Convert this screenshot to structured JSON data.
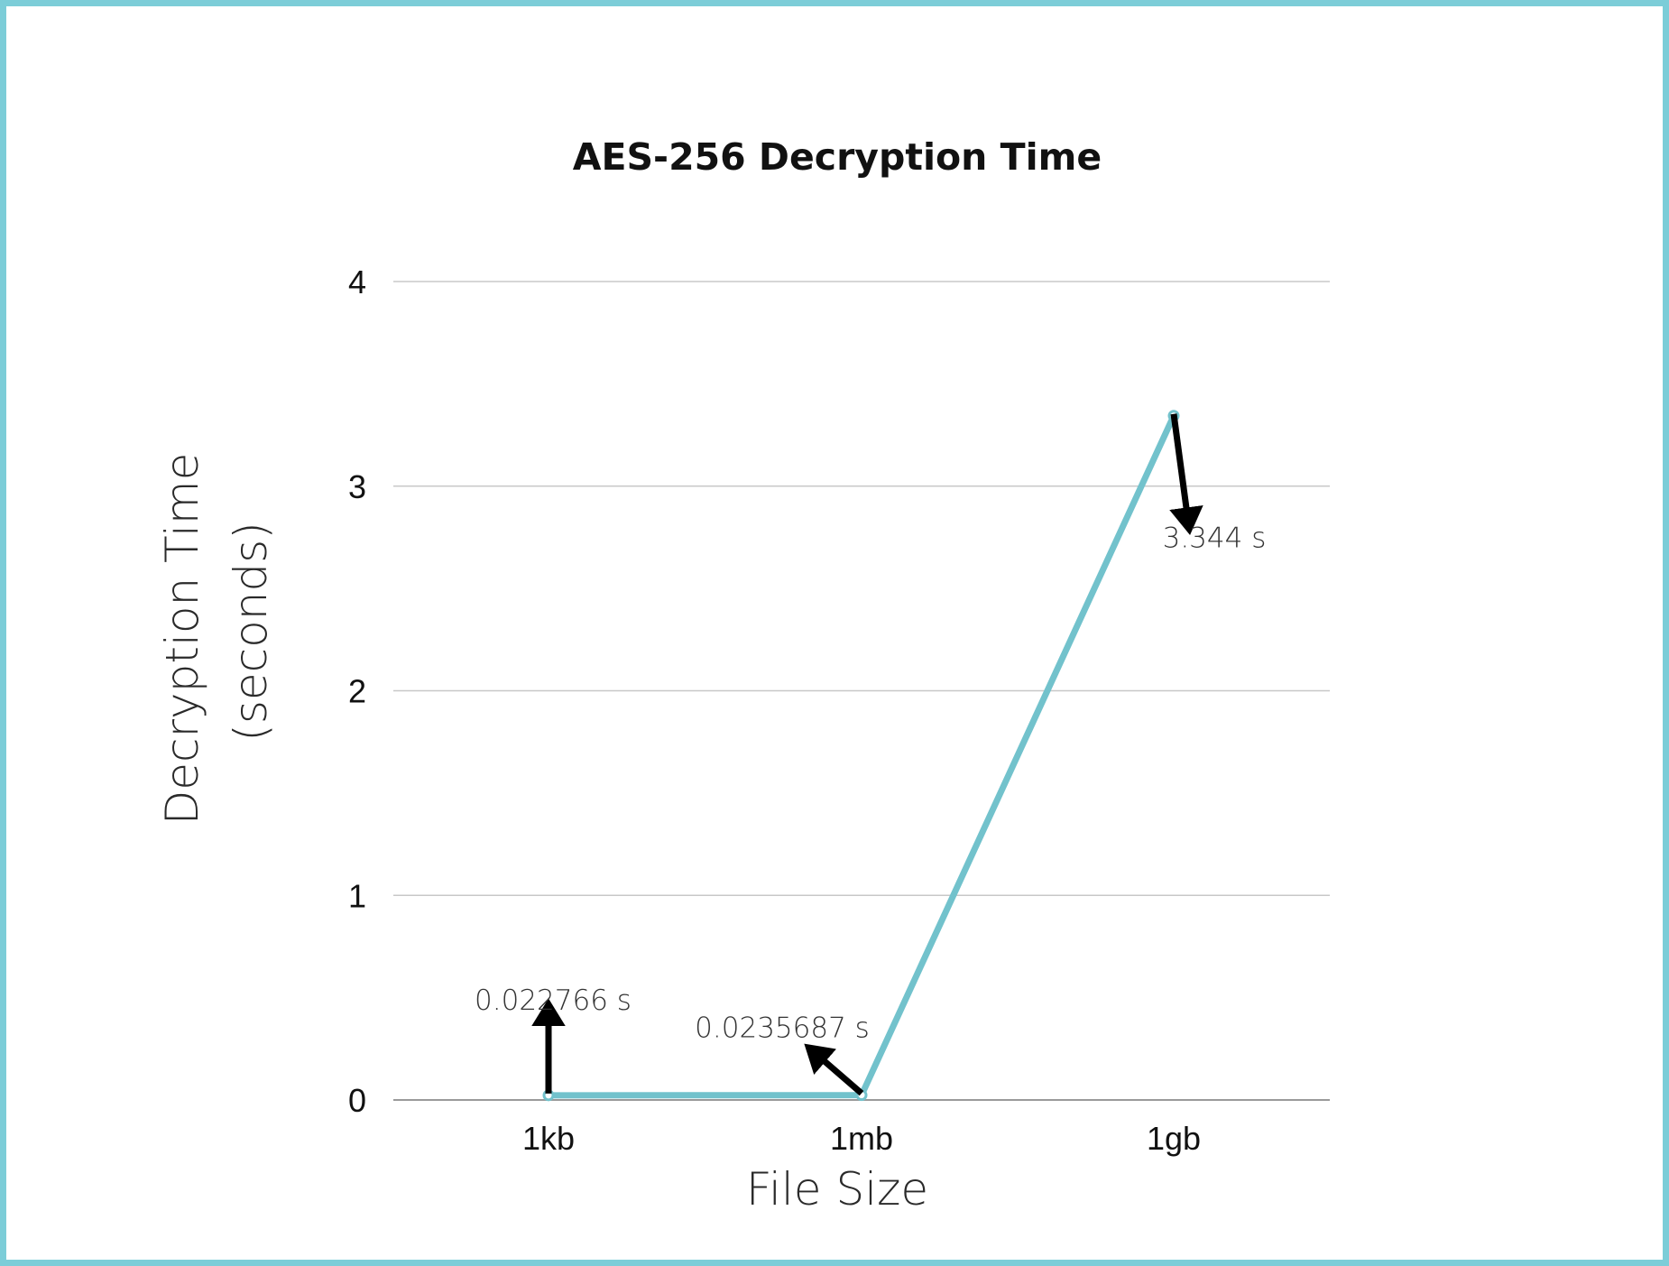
{
  "chart_data": {
    "type": "line",
    "title": "AES-256 Decryption Time",
    "xlabel": "File Size",
    "ylabel": [
      "Decryption Time",
      "(seconds)"
    ],
    "categories": [
      "1kb",
      "1mb",
      "1gb"
    ],
    "values": [
      0.022766,
      0.0235687,
      3.344
    ],
    "data_labels": [
      "0.022766 s",
      "0.0235687 s",
      "3.344 s"
    ],
    "ylim": [
      0,
      4
    ],
    "yticks": [
      "0",
      "1",
      "2",
      "3",
      "4"
    ],
    "grid": true,
    "line_color": "#72c2cc",
    "grid_color": "#c8c8c8",
    "frame_color": "#7ccdd8",
    "annotation_arrow_color": "#000000"
  }
}
